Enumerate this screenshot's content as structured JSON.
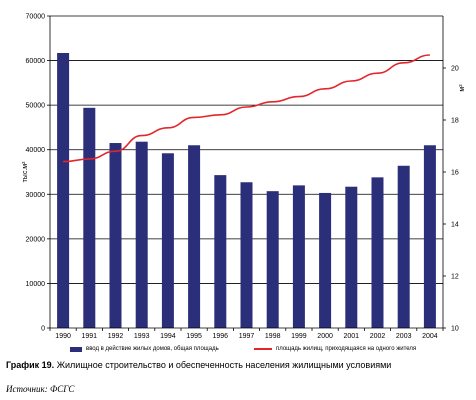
{
  "chart_data": {
    "type": "bar",
    "categories": [
      "1990",
      "1991",
      "1992",
      "1993",
      "1994",
      "1995",
      "1996",
      "1997",
      "1998",
      "1999",
      "2000",
      "2001",
      "2002",
      "2003",
      "2004"
    ],
    "series": [
      {
        "name": "ввод в действие жилых домов, общая площадь",
        "type": "bar",
        "axis": "left",
        "color": "#2b2f7a",
        "values": [
          61700,
          49400,
          41500,
          41800,
          39200,
          41000,
          34300,
          32700,
          30700,
          32000,
          30300,
          31700,
          33800,
          36400,
          41000
        ]
      },
      {
        "name": "площадь жилищ, приходящаяся на одного жителя",
        "type": "line",
        "axis": "right",
        "color": "#e3262b",
        "values": [
          16.4,
          16.5,
          16.8,
          17.4,
          17.7,
          18.1,
          18.2,
          18.5,
          18.7,
          18.9,
          19.2,
          19.5,
          19.8,
          20.2,
          20.5
        ]
      }
    ],
    "ylabel": "тыс.м²",
    "ylim": [
      0,
      70000
    ],
    "yticks": [
      "0",
      "10000",
      "20000",
      "30000",
      "40000",
      "50000",
      "60000",
      "70000"
    ],
    "y2label": "м²",
    "y2lim": [
      10,
      22
    ],
    "y2ticks": [
      "10",
      "12",
      "14",
      "16",
      "18",
      "20"
    ],
    "grid": true,
    "legend_position": "bottom"
  },
  "caption": {
    "label": "График 19.",
    "text": "Жилищное строительство и обеспеченность населения жилищными условиями"
  },
  "source": "Источник:  ФСГС"
}
